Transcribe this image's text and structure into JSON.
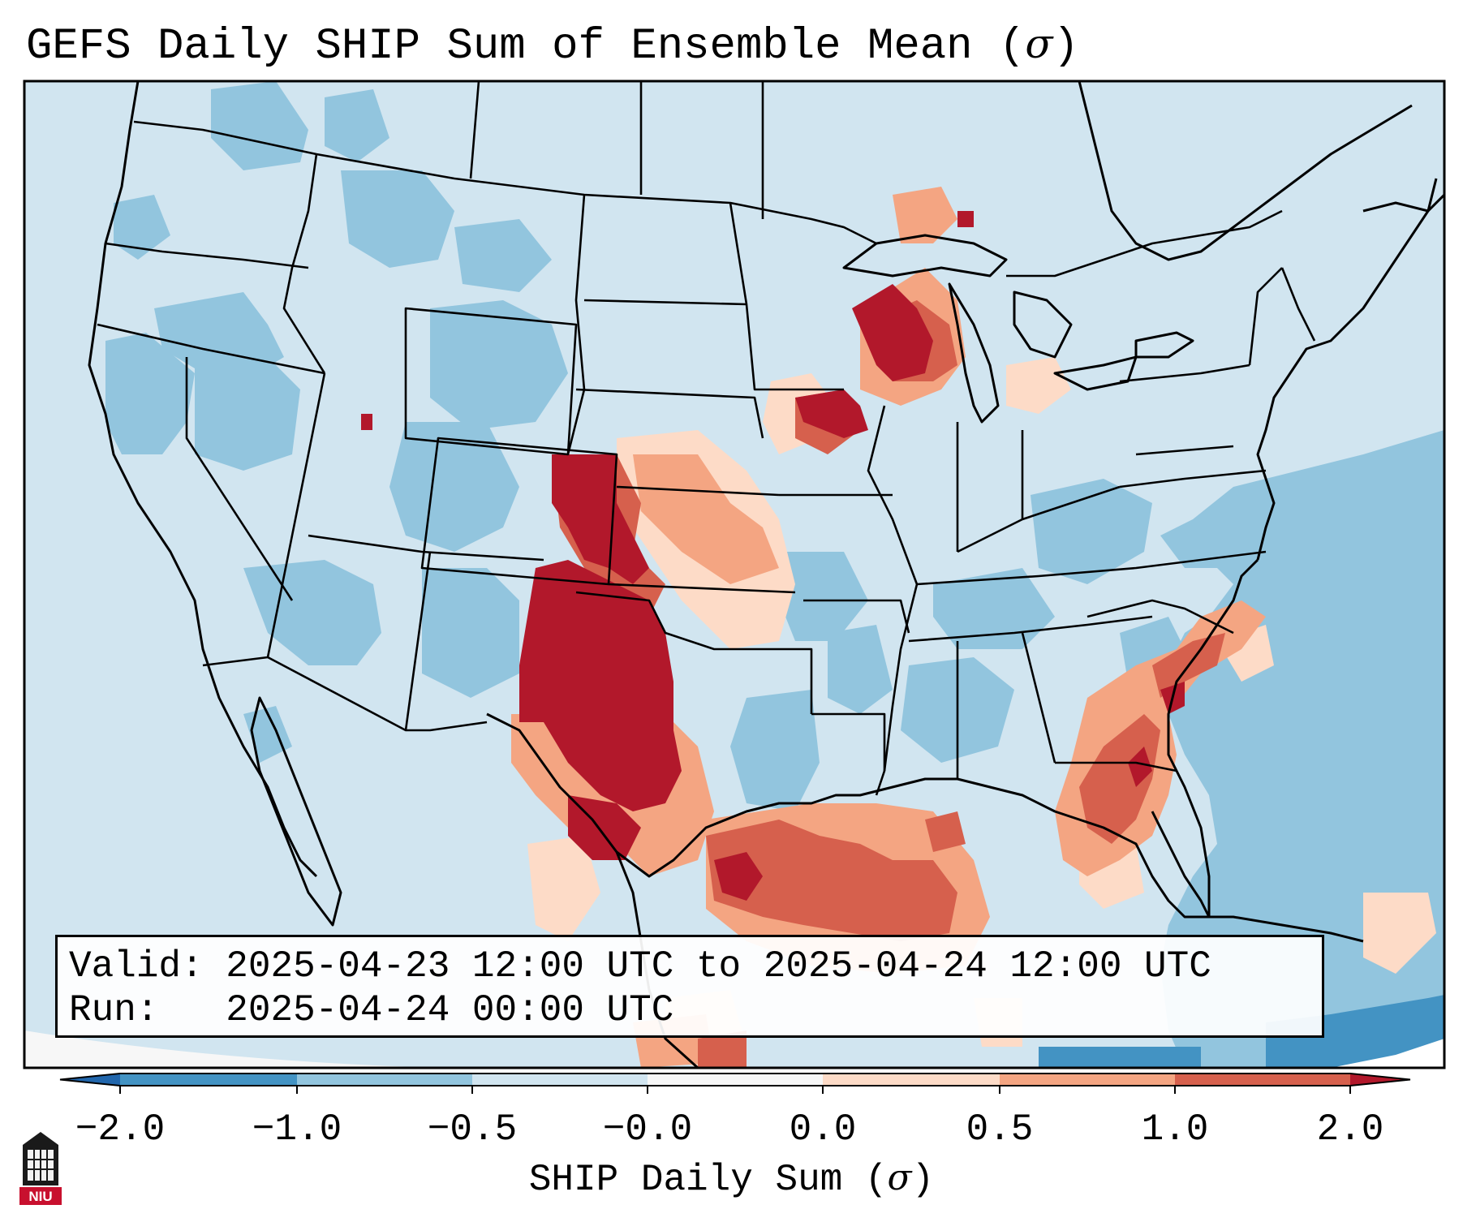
{
  "title": {
    "text": "GEFS Daily SHIP Sum of Ensemble Mean (",
    "symbol": "σ",
    "close": ")"
  },
  "info": {
    "valid_label": "Valid:",
    "valid_value": "2025-04-23 12:00 UTC to 2025-04-24 12:00 UTC",
    "run_label": "Run:",
    "run_value": "2025-04-24 00:00 UTC"
  },
  "colorbar": {
    "label_text": "SHIP Daily Sum (",
    "label_symbol": "σ",
    "label_close": ")",
    "ticks": [
      "−2.0",
      "−1.0",
      "−0.5",
      "−0.0",
      "0.0",
      "0.5",
      "1.0",
      "2.0"
    ],
    "bins": [
      {
        "range": "< -2.0",
        "color": "#2166ac"
      },
      {
        "range": "-2.0 to -1.0",
        "color": "#4393c3"
      },
      {
        "range": "-1.0 to -0.5",
        "color": "#92c5de"
      },
      {
        "range": "-0.5 to -0.0",
        "color": "#d1e5f0"
      },
      {
        "range": "-0.0 to 0.0",
        "color": "#f7f7f7"
      },
      {
        "range": "0.0 to 0.5",
        "color": "#fddbc7"
      },
      {
        "range": "0.5 to 1.0",
        "color": "#f4a582"
      },
      {
        "range": "1.0 to 2.0",
        "color": "#d6604d"
      },
      {
        "range": "> 2.0",
        "color": "#b2182b"
      }
    ]
  },
  "logo": {
    "text": "NIU",
    "name": "NIU logo"
  }
}
